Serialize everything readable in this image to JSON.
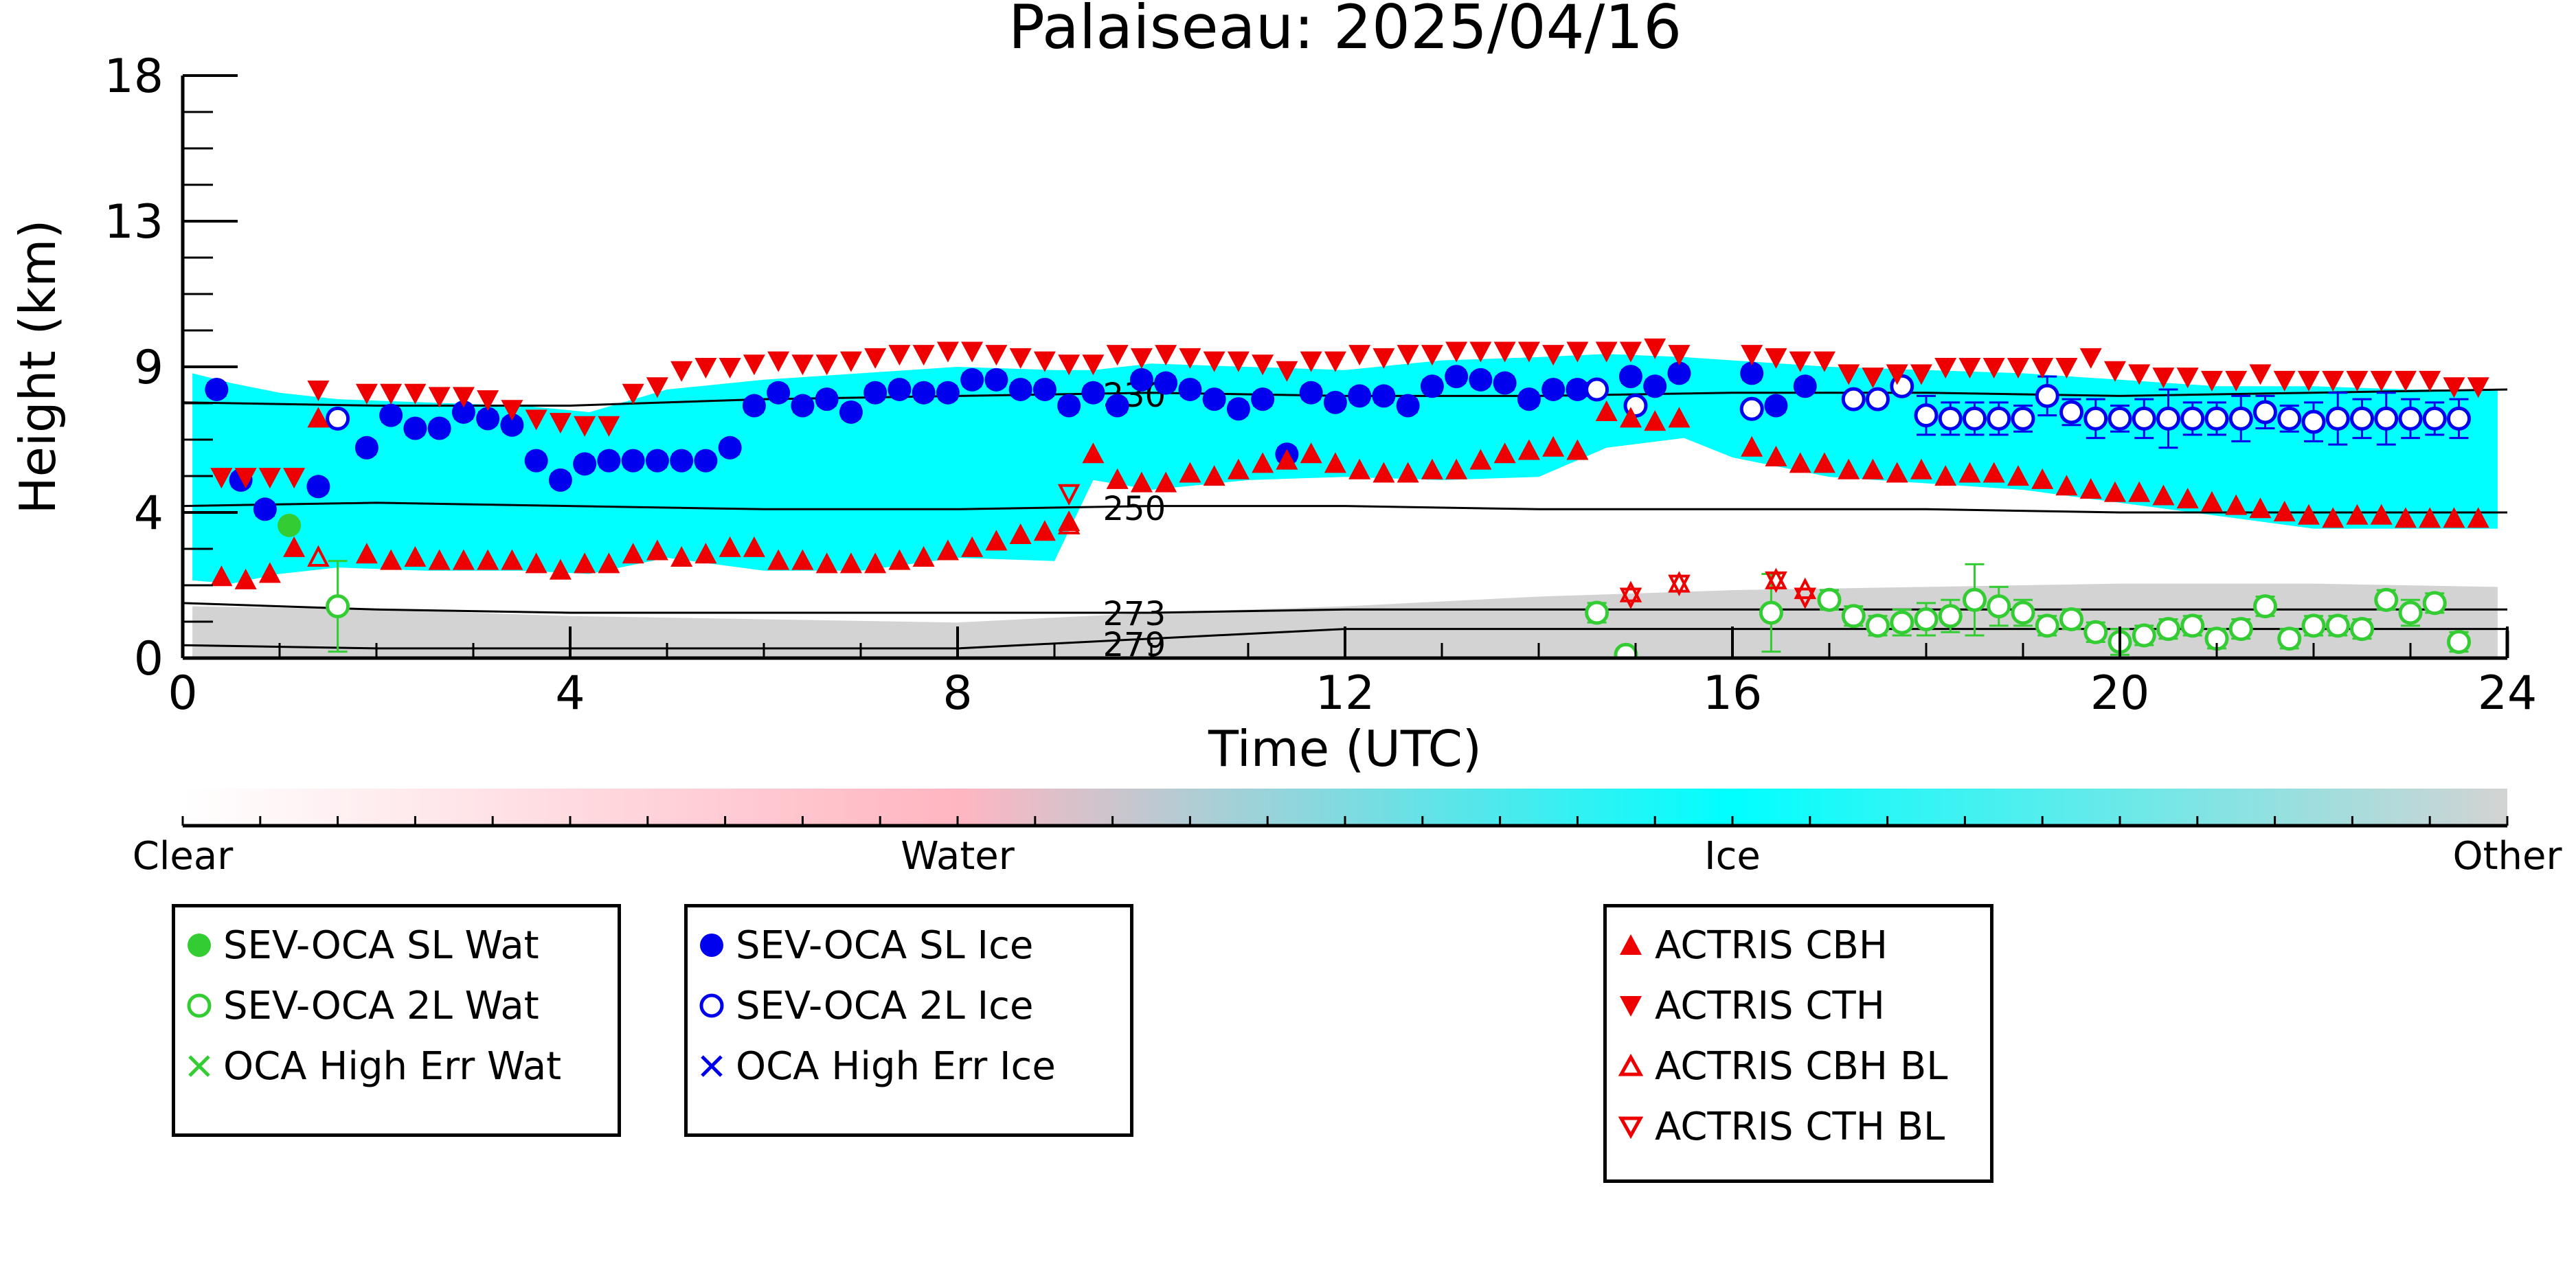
{
  "chart_data": {
    "type": "scatter",
    "title": "Palaiseau: 2025/04/16",
    "xlabel": "Time (UTC)",
    "ylabel": "Height (km)",
    "xlim": [
      0,
      24
    ],
    "ylim": [
      0,
      18
    ],
    "x_ticks": [
      "0",
      "4",
      "8",
      "12",
      "16",
      "20",
      "24"
    ],
    "y_ticks": [
      "0",
      "4",
      "9",
      "13",
      "18"
    ],
    "background_classes": {
      "ice_layer": [
        [
          0.1,
          2.4,
          8.8
        ],
        [
          0.5,
          2.3,
          8.5
        ],
        [
          1.0,
          2.6,
          8.2
        ],
        [
          1.6,
          2.8,
          8.0
        ],
        [
          2.5,
          2.7,
          7.9
        ],
        [
          3.5,
          2.7,
          7.8
        ],
        [
          4.2,
          2.6,
          7.6
        ],
        [
          5.0,
          3.1,
          8.3
        ],
        [
          6.0,
          2.7,
          8.6
        ],
        [
          7.0,
          2.7,
          8.8
        ],
        [
          8.0,
          3.1,
          9.0
        ],
        [
          9.0,
          3.0,
          8.9
        ],
        [
          9.4,
          5.5,
          8.9
        ],
        [
          10.0,
          5.2,
          9.1
        ],
        [
          11.0,
          5.5,
          9.0
        ],
        [
          12.0,
          5.6,
          8.9
        ],
        [
          13.0,
          5.5,
          9.2
        ],
        [
          14.0,
          5.6,
          9.3
        ],
        [
          14.7,
          6.5,
          9.4
        ],
        [
          15.5,
          6.8,
          9.3
        ],
        [
          16.0,
          6.2,
          9.2
        ],
        [
          17.0,
          5.6,
          9.0
        ],
        [
          18.0,
          5.4,
          8.9
        ],
        [
          19.0,
          5.2,
          8.8
        ],
        [
          20.0,
          4.8,
          8.6
        ],
        [
          21.0,
          4.4,
          8.4
        ],
        [
          22.0,
          4.0,
          8.4
        ],
        [
          23.0,
          4.0,
          8.3
        ],
        [
          23.9,
          4.0,
          8.3
        ]
      ],
      "low_layer": [
        [
          0.1,
          0.0,
          1.6
        ],
        [
          2.0,
          0.0,
          1.5
        ],
        [
          4.0,
          0.0,
          1.3
        ],
        [
          6.0,
          0.0,
          1.2
        ],
        [
          8.0,
          0.0,
          1.1
        ],
        [
          10.0,
          0.0,
          1.4
        ],
        [
          12.0,
          0.0,
          1.6
        ],
        [
          14.0,
          0.0,
          1.9
        ],
        [
          16.0,
          0.0,
          2.1
        ],
        [
          18.0,
          0.0,
          2.2
        ],
        [
          20.0,
          0.0,
          2.3
        ],
        [
          22.0,
          0.0,
          2.3
        ],
        [
          23.9,
          0.0,
          2.2
        ]
      ]
    },
    "isotherms": [
      {
        "label": "230",
        "x": [
          0,
          2,
          4,
          6,
          8,
          10,
          12,
          14,
          16,
          18,
          20,
          22,
          24
        ],
        "y": [
          7.9,
          7.8,
          7.8,
          8.0,
          8.1,
          8.2,
          8.1,
          8.1,
          8.2,
          8.2,
          8.1,
          8.2,
          8.3
        ]
      },
      {
        "label": "250",
        "x": [
          0,
          2,
          4,
          6,
          8,
          10,
          12,
          14,
          16,
          18,
          20,
          22,
          24
        ],
        "y": [
          4.7,
          4.8,
          4.7,
          4.6,
          4.6,
          4.7,
          4.7,
          4.6,
          4.6,
          4.6,
          4.5,
          4.5,
          4.5
        ]
      },
      {
        "label": "273",
        "x": [
          0,
          2,
          4,
          6,
          8,
          10,
          12,
          14,
          16,
          18,
          20,
          22,
          24
        ],
        "y": [
          1.7,
          1.5,
          1.4,
          1.4,
          1.4,
          1.4,
          1.5,
          1.5,
          1.5,
          1.5,
          1.5,
          1.5,
          1.5
        ]
      },
      {
        "label": "279",
        "x": [
          0,
          2,
          4,
          6,
          8,
          10,
          12,
          14,
          16,
          18,
          20,
          22,
          24
        ],
        "y": [
          0.4,
          0.3,
          0.3,
          0.3,
          0.3,
          0.6,
          0.9,
          0.9,
          0.9,
          0.9,
          0.9,
          0.9,
          0.9
        ]
      }
    ],
    "series": [
      {
        "name": "SEV-OCA SL Wat",
        "color": "#33cc33",
        "marker": "filled-circle",
        "x": [
          1.1
        ],
        "y": [
          4.1
        ],
        "yerr": [
          0.1
        ]
      },
      {
        "name": "SEV-OCA 2L Wat",
        "color": "#33cc33",
        "marker": "open-circle",
        "x": [
          1.6,
          14.6,
          14.9,
          16.4,
          17.0,
          17.25,
          17.5,
          17.75,
          18.0,
          18.25,
          18.5,
          18.75,
          19.0,
          19.25,
          19.5,
          19.75,
          20.0,
          20.25,
          20.5,
          20.75,
          21.0,
          21.25,
          21.5,
          21.75,
          22.0,
          22.25,
          22.5,
          22.75,
          23.0,
          23.25,
          23.5
        ],
        "y": [
          1.6,
          1.4,
          0.1,
          1.4,
          1.8,
          1.3,
          1.0,
          1.1,
          1.2,
          1.3,
          1.8,
          1.6,
          1.4,
          1.0,
          1.2,
          0.8,
          0.5,
          0.7,
          0.9,
          1.0,
          0.6,
          0.9,
          1.6,
          0.6,
          1.0,
          1.0,
          0.9,
          1.8,
          1.4,
          1.7,
          0.5
        ],
        "yerr": [
          1.4,
          0.3,
          0.2,
          1.2,
          0.3,
          0.3,
          0.3,
          0.4,
          0.5,
          0.5,
          1.1,
          0.6,
          0.4,
          0.3,
          0.3,
          0.3,
          0.4,
          0.3,
          0.3,
          0.3,
          0.3,
          0.3,
          0.3,
          0.3,
          0.3,
          0.3,
          0.3,
          0.3,
          0.4,
          0.3,
          0.3
        ]
      },
      {
        "name": "SEV-OCA SL Ice",
        "color": "#0000ee",
        "marker": "filled-circle",
        "x": [
          0.35,
          0.6,
          0.85,
          1.4,
          1.9,
          2.15,
          2.4,
          2.65,
          2.9,
          3.15,
          3.4,
          3.65,
          3.9,
          4.15,
          4.4,
          4.65,
          4.9,
          5.15,
          5.4,
          5.65,
          5.9,
          6.15,
          6.4,
          6.65,
          6.9,
          7.15,
          7.4,
          7.65,
          7.9,
          8.15,
          8.4,
          8.65,
          8.9,
          9.15,
          9.4,
          9.65,
          9.9,
          10.15,
          10.4,
          10.65,
          10.9,
          11.15,
          11.4,
          11.65,
          11.9,
          12.15,
          12.4,
          12.65,
          12.9,
          13.15,
          13.4,
          13.65,
          13.9,
          14.15,
          14.4,
          14.95,
          15.2,
          15.45,
          16.2,
          16.45,
          16.75
        ],
        "y": [
          8.3,
          5.5,
          4.6,
          5.3,
          6.5,
          7.5,
          7.1,
          7.1,
          7.6,
          7.4,
          7.2,
          6.1,
          5.5,
          6.0,
          6.1,
          6.1,
          6.1,
          6.1,
          6.1,
          6.5,
          7.8,
          8.2,
          7.8,
          8.0,
          7.6,
          8.2,
          8.3,
          8.2,
          8.2,
          8.6,
          8.6,
          8.3,
          8.3,
          7.8,
          8.2,
          7.8,
          8.6,
          8.5,
          8.3,
          8.0,
          7.7,
          8.0,
          6.3,
          8.2,
          7.9,
          8.1,
          8.1,
          7.8,
          8.4,
          8.7,
          8.6,
          8.5,
          8.0,
          8.3,
          8.3,
          8.7,
          8.4,
          8.8,
          8.8,
          7.8,
          8.4
        ],
        "yerr": [
          0.2,
          0.2,
          0.2,
          0.2,
          0.2,
          0.2,
          0.2,
          0.2,
          0.2,
          0.2,
          0.2,
          0.2,
          0.2,
          0.2,
          0.2,
          0.2,
          0.2,
          0.2,
          0.2,
          0.2,
          0.2,
          0.2,
          0.2,
          0.2,
          0.2,
          0.2,
          0.2,
          0.2,
          0.2,
          0.2,
          0.2,
          0.2,
          0.2,
          0.2,
          0.2,
          0.2,
          0.2,
          0.2,
          0.2,
          0.2,
          0.2,
          0.2,
          0.2,
          0.2,
          0.2,
          0.2,
          0.2,
          0.2,
          0.2,
          0.2,
          0.2,
          0.2,
          0.2,
          0.2,
          0.2,
          0.2,
          0.2,
          0.2,
          0.2,
          0.2,
          0.2
        ]
      },
      {
        "name": "SEV-OCA 2L Ice",
        "color": "#0000ee",
        "marker": "open-circle",
        "x": [
          1.6,
          14.6,
          15.0,
          16.2,
          17.25,
          17.5,
          17.75,
          18.0,
          18.25,
          18.5,
          18.75,
          19.0,
          19.25,
          19.5,
          19.75,
          20.0,
          20.25,
          20.5,
          20.75,
          21.0,
          21.25,
          21.5,
          21.75,
          22.0,
          22.25,
          22.5,
          22.75,
          23.0,
          23.25,
          23.5
        ],
        "y": [
          7.4,
          8.3,
          7.8,
          7.7,
          8.0,
          8.0,
          8.4,
          7.5,
          7.4,
          7.4,
          7.4,
          7.4,
          8.1,
          7.6,
          7.4,
          7.4,
          7.4,
          7.4,
          7.4,
          7.4,
          7.4,
          7.6,
          7.4,
          7.3,
          7.4,
          7.4,
          7.4,
          7.4,
          7.4,
          7.4
        ],
        "yerr": [
          0.2,
          0.2,
          0.2,
          0.2,
          0.2,
          0.2,
          0.2,
          0.6,
          0.5,
          0.5,
          0.5,
          0.4,
          0.6,
          0.4,
          0.6,
          0.4,
          0.6,
          0.9,
          0.5,
          0.5,
          0.7,
          0.5,
          0.4,
          0.6,
          0.8,
          0.6,
          0.8,
          0.6,
          0.5,
          0.6
        ]
      },
      {
        "name": "OCA High Err Wat",
        "color": "#33cc33",
        "marker": "x",
        "x": [],
        "y": []
      },
      {
        "name": "OCA High Err Ice",
        "color": "#0000ee",
        "marker": "x",
        "x": [],
        "y": []
      },
      {
        "name": "ACTRIS CBH",
        "color": "#ee0000",
        "marker": "filled-triangle-up",
        "x": [
          0.4,
          0.65,
          0.9,
          1.15,
          1.4,
          1.9,
          2.15,
          2.4,
          2.65,
          2.9,
          3.15,
          3.4,
          3.65,
          3.9,
          4.15,
          4.4,
          4.65,
          4.9,
          5.15,
          5.4,
          5.65,
          5.9,
          6.15,
          6.4,
          6.65,
          6.9,
          7.15,
          7.4,
          7.65,
          7.9,
          8.15,
          8.4,
          8.65,
          8.9,
          9.15,
          9.4,
          9.65,
          9.9,
          10.15,
          10.4,
          10.65,
          10.9,
          11.15,
          11.4,
          11.65,
          11.9,
          12.15,
          12.4,
          12.65,
          12.9,
          13.15,
          13.4,
          13.65,
          13.9,
          14.15,
          14.4,
          14.7,
          14.95,
          15.2,
          15.45,
          16.2,
          16.45,
          16.7,
          16.95,
          17.2,
          17.45,
          17.7,
          17.95,
          18.2,
          18.45,
          18.7,
          18.95,
          19.2,
          19.45,
          19.7,
          19.95,
          20.2,
          20.45,
          20.7,
          20.95,
          21.2,
          21.45,
          21.7,
          21.95,
          22.2,
          22.45,
          22.7,
          22.95,
          23.2,
          23.45,
          23.7
        ],
        "y": [
          2.5,
          2.4,
          2.6,
          3.4,
          7.4,
          3.2,
          3.0,
          3.1,
          3.0,
          3.0,
          3.0,
          3.0,
          2.9,
          2.7,
          2.9,
          2.9,
          3.2,
          3.3,
          3.1,
          3.2,
          3.4,
          3.4,
          3.0,
          3.0,
          2.9,
          2.9,
          2.9,
          3.0,
          3.1,
          3.3,
          3.4,
          3.6,
          3.8,
          3.9,
          4.2,
          6.3,
          5.5,
          5.4,
          5.4,
          5.7,
          5.6,
          5.8,
          6.0,
          6.1,
          6.3,
          6.0,
          5.8,
          5.7,
          5.7,
          5.8,
          5.8,
          6.1,
          6.3,
          6.4,
          6.5,
          6.4,
          7.6,
          7.4,
          7.3,
          7.4,
          6.5,
          6.2,
          6.0,
          6.0,
          5.8,
          5.8,
          5.7,
          5.8,
          5.6,
          5.7,
          5.7,
          5.6,
          5.5,
          5.3,
          5.2,
          5.1,
          5.1,
          5.0,
          4.9,
          4.8,
          4.7,
          4.6,
          4.5,
          4.4,
          4.3,
          4.4,
          4.4,
          4.3,
          4.3,
          4.3,
          4.3
        ],
        "yerr": []
      },
      {
        "name": "ACTRIS CTH",
        "color": "#ee0000",
        "marker": "filled-triangle-down",
        "x": [
          0.4,
          0.65,
          0.9,
          1.15,
          1.4,
          1.9,
          2.15,
          2.4,
          2.65,
          2.9,
          3.15,
          3.4,
          3.65,
          3.9,
          4.15,
          4.4,
          4.65,
          4.9,
          5.15,
          5.4,
          5.65,
          5.9,
          6.15,
          6.4,
          6.65,
          6.9,
          7.15,
          7.4,
          7.65,
          7.9,
          8.15,
          8.4,
          8.65,
          8.9,
          9.15,
          9.4,
          9.65,
          9.9,
          10.15,
          10.4,
          10.65,
          10.9,
          11.15,
          11.4,
          11.65,
          11.9,
          12.15,
          12.4,
          12.65,
          12.9,
          13.15,
          13.4,
          13.65,
          13.9,
          14.15,
          14.4,
          14.7,
          14.95,
          15.2,
          15.45,
          16.2,
          16.45,
          16.7,
          16.95,
          17.2,
          17.45,
          17.7,
          17.95,
          18.2,
          18.45,
          18.7,
          18.95,
          19.2,
          19.45,
          19.7,
          19.95,
          20.2,
          20.45,
          20.7,
          20.95,
          21.2,
          21.45,
          21.7,
          21.95,
          22.2,
          22.45,
          22.7,
          22.95,
          23.2,
          23.45,
          23.7
        ],
        "y": [
          5.6,
          5.6,
          5.6,
          5.6,
          8.3,
          8.2,
          8.2,
          8.2,
          8.1,
          8.1,
          8.0,
          7.7,
          7.4,
          7.3,
          7.2,
          7.2,
          8.2,
          8.4,
          8.9,
          9.0,
          9.0,
          9.1,
          9.2,
          9.1,
          9.1,
          9.2,
          9.3,
          9.4,
          9.4,
          9.5,
          9.5,
          9.4,
          9.3,
          9.2,
          9.1,
          9.1,
          9.4,
          9.3,
          9.4,
          9.3,
          9.2,
          9.2,
          9.1,
          8.9,
          9.2,
          9.2,
          9.4,
          9.3,
          9.4,
          9.4,
          9.5,
          9.5,
          9.5,
          9.5,
          9.4,
          9.5,
          9.5,
          9.5,
          9.6,
          9.4,
          9.4,
          9.3,
          9.2,
          9.2,
          8.8,
          8.7,
          8.8,
          8.8,
          9.0,
          9.0,
          9.0,
          9.0,
          9.0,
          9.0,
          9.3,
          8.9,
          8.8,
          8.7,
          8.7,
          8.6,
          8.6,
          8.8,
          8.6,
          8.6,
          8.6,
          8.6,
          8.6,
          8.6,
          8.6,
          8.4,
          8.4
        ],
        "yerr": []
      },
      {
        "name": "ACTRIS CBH BL",
        "color": "#ee0000",
        "marker": "open-triangle-up",
        "x": [
          1.4,
          9.15,
          14.95,
          15.45,
          16.45,
          16.75
        ],
        "y": [
          3.1,
          4.1,
          2.0,
          2.3,
          2.4,
          2.1
        ],
        "yerr": []
      },
      {
        "name": "ACTRIS CTH BL",
        "color": "#ee0000",
        "marker": "open-triangle-down",
        "x": [
          9.15,
          14.95,
          15.45,
          16.45,
          16.75
        ],
        "y": [
          5.1,
          1.9,
          2.3,
          2.4,
          1.9
        ],
        "yerr": []
      }
    ],
    "colorbar": {
      "labels": [
        "Clear",
        "Water",
        "Ice",
        "Other"
      ],
      "colors": {
        "clear": "#ffffff",
        "water": "#ffb6c1",
        "ice": "#00ffff",
        "other": "#d3d3d3"
      }
    },
    "grid": false
  },
  "legend": {
    "box1": [
      "SEV-OCA SL Wat",
      "SEV-OCA 2L Wat",
      "OCA High Err Wat"
    ],
    "box2": [
      "SEV-OCA SL Ice",
      "SEV-OCA 2L Ice",
      "OCA High Err Ice"
    ],
    "box3": [
      "ACTRIS CBH",
      "ACTRIS CTH",
      "ACTRIS CBH BL",
      "ACTRIS CTH BL"
    ]
  },
  "colors": {
    "green": "#33cc33",
    "blue": "#0000ee",
    "red": "#ee0000",
    "ice": "#00ffff",
    "water": "#ffb6c1",
    "other": "#d3d3d3"
  }
}
